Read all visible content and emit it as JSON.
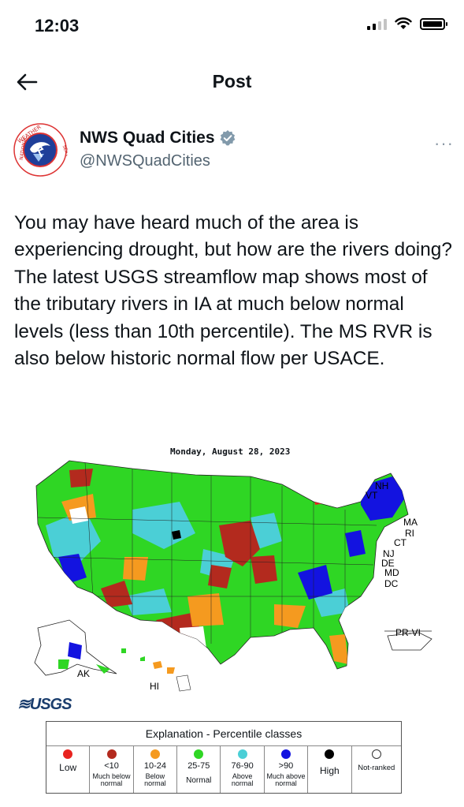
{
  "status_bar": {
    "time": "12:03"
  },
  "header": {
    "title": "Post"
  },
  "author": {
    "name": "NWS Quad Cities",
    "handle": "@NWSQuadCities",
    "more": "···"
  },
  "tweet": {
    "text": "You may have heard much of the area is experiencing drought, but how are the rivers doing?  The latest USGS streamflow map shows most of the tributary rivers in IA at much below normal levels (less than 10th percentile). The MS RVR is also below historic normal flow per USACE."
  },
  "map": {
    "date": "Monday, August 28, 2023",
    "labels": {
      "nh": "NH",
      "vt": "VT",
      "ma": "MA",
      "ri": "RI",
      "ct": "CT",
      "nj": "NJ",
      "de": "DE",
      "md": "MD",
      "dc": "DC",
      "pr": "PR-VI",
      "ak": "AK",
      "hi": "HI"
    },
    "logo": "≋USGS",
    "colors": {
      "low": "#e8231f",
      "much_below": "#b32a1e",
      "below": "#f59a1f",
      "normal": "#2fd624",
      "above": "#4bcfd6",
      "much_above": "#1313e0",
      "high": "#000000"
    },
    "legend": {
      "title": "Explanation - Percentile classes",
      "classes": [
        {
          "range": "",
          "desc": "Low",
          "color": "#e8231f"
        },
        {
          "range": "<10",
          "desc": "Much below normal",
          "color": "#b32a1e"
        },
        {
          "range": "10-24",
          "desc": "Below normal",
          "color": "#f59a1f"
        },
        {
          "range": "25-75",
          "desc": "Normal",
          "color": "#2fd624"
        },
        {
          "range": "76-90",
          "desc": "Above normal",
          "color": "#4bcfd6"
        },
        {
          "range": ">90",
          "desc": "Much above normal",
          "color": "#1313e0"
        },
        {
          "range": "",
          "desc": "High",
          "color": "#000000"
        },
        {
          "range": "",
          "desc": "Not-ranked",
          "color": "hollow"
        }
      ]
    }
  }
}
